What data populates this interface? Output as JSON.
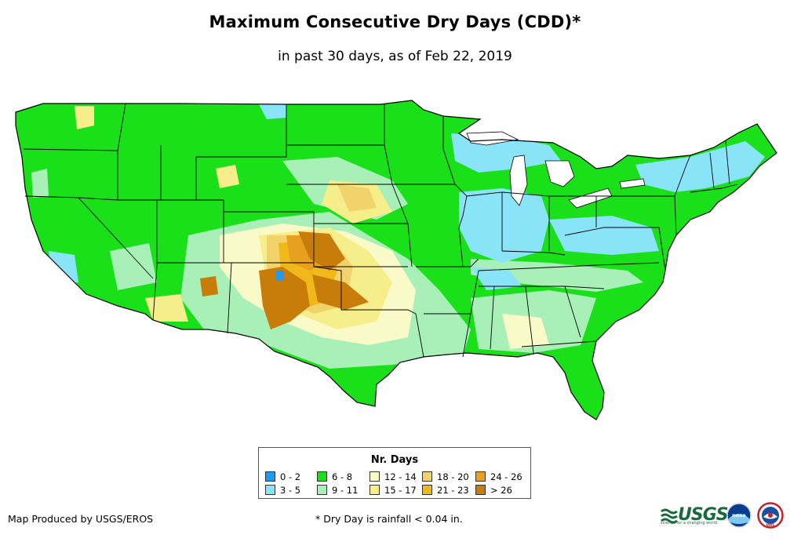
{
  "title": "Maximum Consecutive Dry Days (CDD)*",
  "subtitle": "in past 30 days, as of Feb 22, 2019",
  "legend": {
    "title": "Nr. Days",
    "items": [
      {
        "label": "0 - 2",
        "color": "#1e9bf0"
      },
      {
        "label": "3 - 5",
        "color": "#8ae4f7"
      },
      {
        "label": "6 - 8",
        "color": "#1ae01a"
      },
      {
        "label": "9 - 11",
        "color": "#a8f0b8"
      },
      {
        "label": "12 - 14",
        "color": "#fafac8"
      },
      {
        "label": "15 - 17",
        "color": "#f5ee8a"
      },
      {
        "label": "18 - 20",
        "color": "#f2d26a"
      },
      {
        "label": "21 - 23",
        "color": "#f0b818"
      },
      {
        "label": "24 - 26",
        "color": "#e8a020"
      },
      {
        "label": "> 26",
        "color": "#c87c0a"
      }
    ]
  },
  "credit": "Map Produced by USGS/EROS",
  "footnote": "* Dry Day is rainfall < 0.04 in.",
  "logos": {
    "usgs": "USGS",
    "usgs_tagline": "science for a changing world",
    "noaa": "noaa",
    "nws": "NWS"
  }
}
